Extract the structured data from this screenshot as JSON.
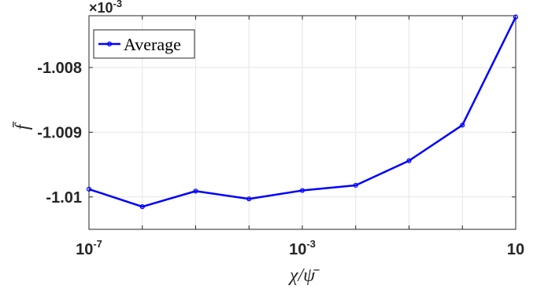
{
  "chart_data": {
    "type": "line",
    "x_scale": "log",
    "xlim": [
      1e-07,
      10
    ],
    "ylim": [
      -1.0105,
      -1.0072
    ],
    "y_multiplier_label": "×10",
    "y_multiplier_exp": "-3",
    "xlabel": "χ/ψ̄",
    "ylabel": "f̄",
    "grid": true,
    "legend_position": "top-left",
    "x_ticks": [
      {
        "value": 1e-07,
        "base": "10",
        "exp": "-7"
      },
      {
        "value": 0.001,
        "base": "10",
        "exp": "-3"
      },
      {
        "value": 10,
        "base": "10",
        "exp": ""
      }
    ],
    "y_ticks": [
      {
        "value": -1.008,
        "label": "-1.008"
      },
      {
        "value": -1.009,
        "label": "-1.009"
      },
      {
        "value": -1.01,
        "label": "-1.01"
      }
    ],
    "series": [
      {
        "name": "Average",
        "color": "#0000ff",
        "marker": "circle",
        "x": [
          1e-07,
          1e-06,
          1e-05,
          0.0001,
          0.001,
          0.01,
          0.1,
          1,
          10
        ],
        "y": [
          -1.00988,
          -1.01015,
          -1.00991,
          -1.01003,
          -1.0099,
          -1.00982,
          -1.00944,
          -1.00889,
          -1.00722
        ]
      }
    ]
  }
}
